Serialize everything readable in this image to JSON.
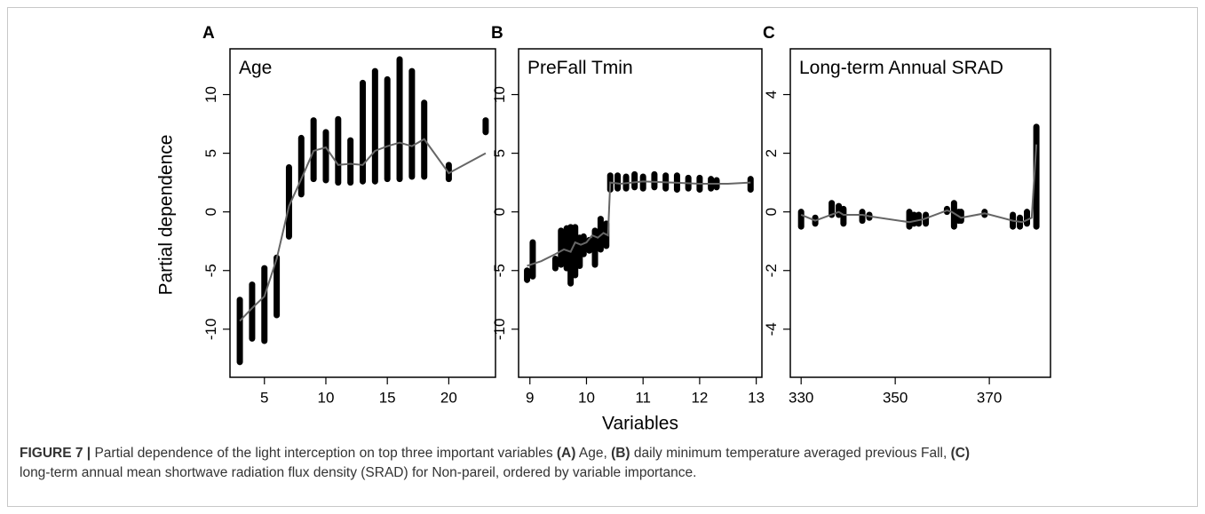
{
  "chart_data": [
    {
      "type": "line",
      "panel_label": "A",
      "title": "Age",
      "ylabel": "Partial dependence",
      "color": "#666666",
      "point_color": "#000000",
      "xlim": [
        2.2,
        23.8
      ],
      "ylim": [
        -14.1,
        13.9
      ],
      "xticks": [
        5,
        10,
        15,
        20
      ],
      "yticks": [
        -10,
        -5,
        0,
        5,
        10
      ],
      "x": [
        3,
        4,
        5,
        6,
        7,
        8,
        9,
        10,
        11,
        12,
        13,
        14,
        15,
        16,
        17,
        18,
        20,
        23
      ],
      "values": [
        -9.3,
        -8.2,
        -7.2,
        -4.0,
        0.5,
        2.8,
        5.2,
        5.5,
        4.0,
        4.1,
        4.0,
        5.2,
        5.6,
        5.9,
        5.6,
        6.2,
        3.3,
        5.0
      ],
      "points": {
        "x": [
          3,
          4,
          5,
          6,
          7,
          8,
          9,
          10,
          11,
          12,
          13,
          14,
          15,
          16,
          17,
          18,
          20,
          23
        ],
        "low": [
          -12.8,
          -10.8,
          -11.0,
          -8.8,
          -2.1,
          1.5,
          2.8,
          2.7,
          2.5,
          2.5,
          2.6,
          2.6,
          2.8,
          2.8,
          3.0,
          3.0,
          2.8,
          6.8
        ],
        "high": [
          -7.5,
          -6.2,
          -4.8,
          -3.9,
          3.8,
          6.3,
          7.8,
          6.8,
          7.9,
          6.1,
          11.0,
          12.0,
          11.3,
          13.0,
          12.0,
          9.3,
          4.0,
          7.8
        ]
      }
    },
    {
      "type": "line",
      "panel_label": "B",
      "title": "PreFall Tmin",
      "xlabel": "Variables",
      "color": "#666666",
      "point_color": "#000000",
      "xlim": [
        8.8,
        13.1
      ],
      "ylim": [
        -14.1,
        13.9
      ],
      "xticks": [
        9,
        10,
        11,
        12,
        13
      ],
      "yticks": [
        -10,
        -5,
        0,
        5,
        10
      ],
      "x": [
        8.95,
        9.2,
        9.45,
        9.6,
        9.72,
        9.8,
        9.9,
        10.0,
        10.1,
        10.2,
        10.3,
        10.38,
        10.42,
        10.6,
        11,
        11.5,
        12,
        12.5,
        12.9
      ],
      "values": [
        -4.6,
        -4.2,
        -3.6,
        -3.2,
        -3.4,
        -2.6,
        -2.8,
        -2.6,
        -2.0,
        -2.2,
        -1.8,
        -2.0,
        2.5,
        2.4,
        2.6,
        2.5,
        2.4,
        2.4,
        2.5
      ],
      "points": {
        "x": [
          8.95,
          9.05,
          9.45,
          9.55,
          9.65,
          9.72,
          9.8,
          9.88,
          9.95,
          10.05,
          10.15,
          10.25,
          10.35,
          10.42,
          10.55,
          10.7,
          10.85,
          11.0,
          11.2,
          11.4,
          11.6,
          11.8,
          12.0,
          12.2,
          12.3,
          12.9
        ],
        "low": [
          -5.8,
          -5.5,
          -4.8,
          -4.5,
          -4.8,
          -6.1,
          -5.4,
          -4.6,
          -3.6,
          -3.3,
          -4.5,
          -3.2,
          -2.9,
          1.9,
          2.0,
          2.0,
          2.1,
          2.0,
          2.1,
          2.0,
          1.9,
          2.0,
          1.9,
          2.0,
          2.1,
          1.9
        ],
        "high": [
          -5.0,
          -2.6,
          -4.0,
          -1.6,
          -1.4,
          -1.3,
          -1.3,
          -2.2,
          -2.1,
          -2.4,
          -1.6,
          -0.6,
          -1.0,
          3.1,
          3.1,
          3.0,
          3.2,
          3.0,
          3.2,
          3.1,
          3.1,
          2.9,
          2.9,
          2.8,
          2.7,
          2.8
        ]
      }
    },
    {
      "type": "line",
      "panel_label": "C",
      "title": "Long-term Annual SRAD",
      "color": "#666666",
      "point_color": "#000000",
      "xlim": [
        327.7,
        383
      ],
      "ylim": [
        -5.64,
        5.56
      ],
      "xticks": [
        330,
        350,
        370
      ],
      "yticks": [
        -4,
        -2,
        0,
        2,
        4
      ],
      "x": [
        330,
        333,
        338,
        339,
        343,
        344.5,
        353,
        356,
        361,
        362,
        364,
        369,
        375,
        377,
        379,
        380
      ],
      "values": [
        -0.1,
        -0.3,
        0.0,
        -0.1,
        -0.1,
        -0.15,
        -0.35,
        -0.25,
        0.05,
        0.0,
        -0.2,
        -0.05,
        -0.3,
        -0.35,
        -0.2,
        2.3
      ],
      "points": {
        "x": [
          330,
          333,
          336.5,
          338,
          339,
          343,
          344.5,
          353,
          354,
          355,
          356.5,
          361,
          362.5,
          363.5,
          364,
          369,
          375,
          376.5,
          378,
          380
        ],
        "low": [
          -0.5,
          -0.4,
          -0.1,
          -0.1,
          -0.4,
          -0.3,
          -0.2,
          -0.5,
          -0.4,
          -0.4,
          -0.4,
          0.0,
          -0.5,
          -0.3,
          -0.3,
          -0.1,
          -0.5,
          -0.5,
          -0.4,
          -0.5
        ],
        "high": [
          0.0,
          -0.2,
          0.3,
          0.2,
          0.1,
          0.0,
          -0.1,
          0.0,
          -0.1,
          -0.1,
          -0.1,
          0.1,
          0.3,
          0.0,
          0.0,
          0.0,
          -0.1,
          -0.2,
          0.0,
          2.9
        ]
      }
    }
  ],
  "caption": {
    "parts": [
      {
        "text": "FIGURE 7 |",
        "bold": true
      },
      {
        "text": " Partial dependence of the light interception on top three important variables "
      },
      {
        "text": "(A)",
        "bold": true
      },
      {
        "text": " Age, "
      },
      {
        "text": "(B)",
        "bold": true
      },
      {
        "text": " daily minimum temperature averaged previous Fall, "
      },
      {
        "text": "(C)",
        "bold": true
      },
      {
        "text": "long-term annual mean shortwave radiation flux density (SRAD) for Non-pareil, ordered by variable importance.",
        "newline": true
      }
    ]
  }
}
